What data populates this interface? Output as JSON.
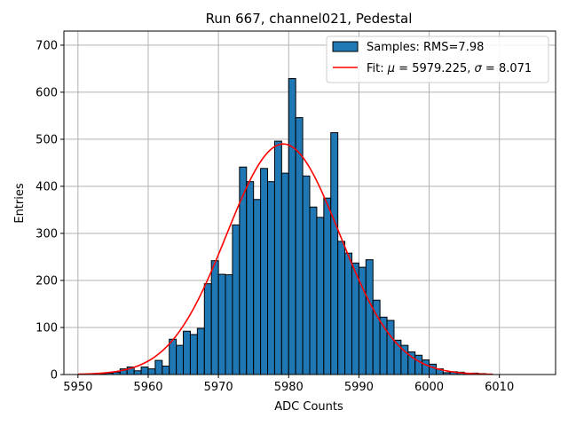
{
  "chart_data": {
    "type": "bar",
    "title": "Run 667, channel021, Pedestal",
    "xlabel": "ADC Counts",
    "ylabel": "Entries",
    "xlim": [
      5948,
      6018
    ],
    "ylim": [
      0,
      730
    ],
    "xticks": [
      5950,
      5960,
      5970,
      5980,
      5990,
      6000,
      6010
    ],
    "yticks": [
      0,
      100,
      200,
      300,
      400,
      500,
      600,
      700
    ],
    "grid": true,
    "legend_position": "top-right",
    "bin_width": 1,
    "histogram": {
      "name": "Samples: RMS=7.98",
      "color": "#1f77b4",
      "edge_color": "#000000",
      "bin_starts": [
        5953,
        5954,
        5955,
        5956,
        5957,
        5958,
        5959,
        5960,
        5961,
        5962,
        5963,
        5964,
        5965,
        5966,
        5967,
        5968,
        5969,
        5970,
        5971,
        5972,
        5973,
        5974,
        5975,
        5976,
        5977,
        5978,
        5979,
        5980,
        5981,
        5982,
        5983,
        5984,
        5985,
        5986,
        5987,
        5988,
        5989,
        5990,
        5991,
        5992,
        5993,
        5994,
        5995,
        5996,
        5997,
        5998,
        5999,
        6000,
        6001,
        6002,
        6003,
        6004,
        6005,
        6006,
        6007,
        6008
      ],
      "counts": [
        2,
        3,
        5,
        12,
        16,
        8,
        16,
        12,
        30,
        18,
        75,
        62,
        92,
        85,
        98,
        193,
        242,
        213,
        212,
        318,
        441,
        410,
        372,
        438,
        410,
        496,
        428,
        629,
        546,
        422,
        356,
        334,
        375,
        514,
        283,
        258,
        237,
        228,
        244,
        158,
        122,
        115,
        73,
        62,
        48,
        41,
        31,
        22,
        12,
        4,
        6,
        5,
        2,
        3,
        2,
        1
      ]
    },
    "fit": {
      "name_prefix": "Fit: ",
      "mu": 5979.225,
      "sigma": 8.071,
      "peak": 490,
      "x_range": [
        5950,
        6009
      ],
      "color": "#ff0000"
    }
  }
}
